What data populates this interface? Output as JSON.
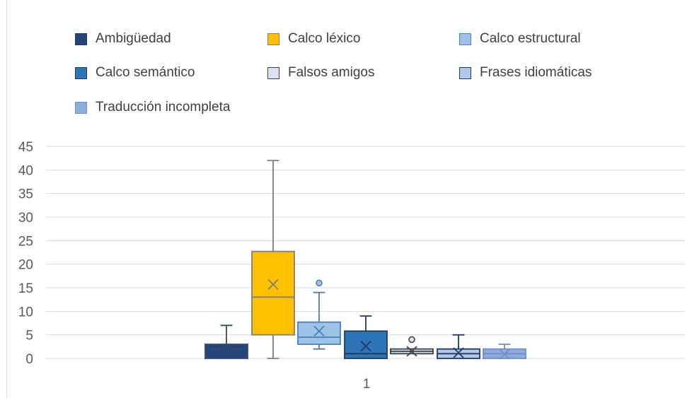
{
  "chart_data": {
    "type": "boxplot",
    "title": "",
    "xlabel": "",
    "ylabel": "",
    "categories": [
      "1"
    ],
    "ylim": [
      0,
      45
    ],
    "yticks": [
      0,
      5,
      10,
      15,
      20,
      25,
      30,
      35,
      40,
      45
    ],
    "grid": true,
    "legend_position": "top",
    "series": [
      {
        "name": "Ambigüedad",
        "color": "#264478",
        "min": 0,
        "q1": 0,
        "median": 2,
        "q3": 3,
        "max": 7,
        "mean": 2,
        "outliers": []
      },
      {
        "name": "Calco léxico",
        "color": "#FFC000",
        "min": 0,
        "q1": 5,
        "median": 13,
        "q3": 22.7,
        "max": 42,
        "mean": 15.7,
        "outliers": []
      },
      {
        "name": "Calco estructural",
        "color": "#9DC3E6",
        "min": 2,
        "q1": 3,
        "median": 4.5,
        "q3": 7.7,
        "max": 14,
        "mean": 5.8,
        "outliers": [
          16
        ]
      },
      {
        "name": "Calco semántico",
        "color": "#2E75B6",
        "min": 0,
        "q1": 0,
        "median": 1,
        "q3": 5.8,
        "max": 9,
        "mean": 2.6,
        "outliers": []
      },
      {
        "name": "Falsos amigos",
        "color": "#DAE3F3",
        "min": 1,
        "q1": 1,
        "median": 1.5,
        "q3": 2,
        "max": 2,
        "mean": 1.5,
        "outliers": [
          4
        ]
      },
      {
        "name": "Frases idiomáticas",
        "color": "#B4C7E7",
        "min": 0,
        "q1": 0,
        "median": 1,
        "q3": 2,
        "max": 5,
        "mean": 1.2,
        "outliers": []
      },
      {
        "name": "Traducción incompleta",
        "color": "#8FAADC",
        "min": 0,
        "q1": 0,
        "median": 1,
        "q3": 2,
        "max": 3,
        "mean": 0.9,
        "outliers": []
      }
    ]
  }
}
